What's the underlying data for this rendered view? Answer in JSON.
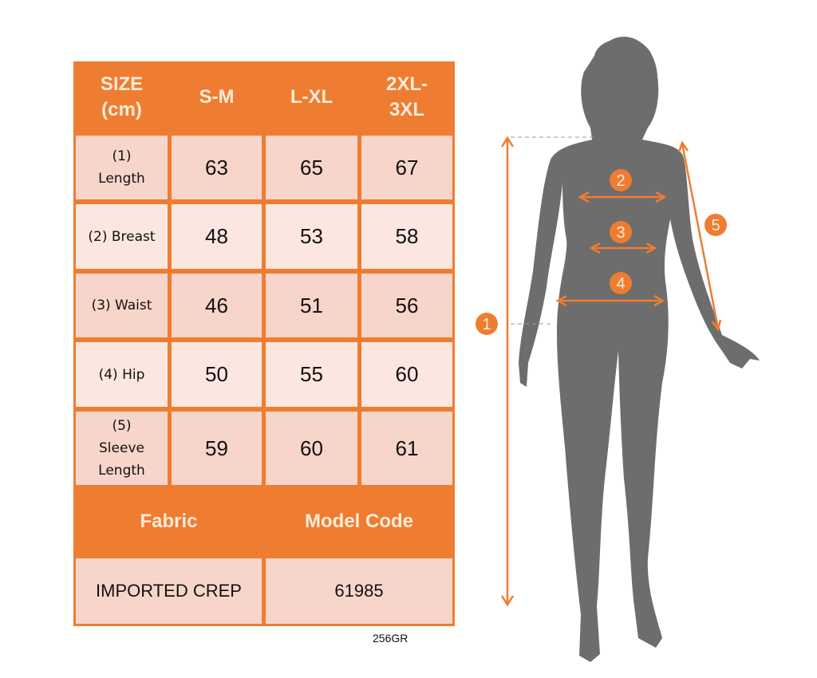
{
  "table": {
    "header": [
      "SIZE (cm)",
      "S-M",
      "L-XL",
      "2XL-3XL"
    ],
    "header_lines": [
      [
        "SIZE",
        "(cm)"
      ],
      [
        "S-M"
      ],
      [
        "L-XL"
      ],
      [
        "2XL-",
        "3XL"
      ]
    ],
    "rows": [
      {
        "label_lines": [
          "(1)",
          "Length"
        ],
        "values": [
          "63",
          "65",
          "67"
        ]
      },
      {
        "label_lines": [
          "(2) Breast"
        ],
        "values": [
          "48",
          "53",
          "58"
        ]
      },
      {
        "label_lines": [
          "(3) Waist"
        ],
        "values": [
          "46",
          "51",
          "56"
        ]
      },
      {
        "label_lines": [
          "(4) Hip"
        ],
        "values": [
          "50",
          "55",
          "60"
        ]
      },
      {
        "label_lines": [
          "(5)",
          "Sleeve",
          "Length"
        ],
        "values": [
          "59",
          "60",
          "61"
        ]
      }
    ],
    "fabric_label": "Fabric",
    "model_code_label": "Model Code",
    "fabric_value": "IMPORTED CREP",
    "model_code_value": "61985"
  },
  "product_code": "256GR",
  "figure": {
    "markers": [
      "1",
      "2",
      "3",
      "4",
      "5"
    ]
  },
  "colors": {
    "accent": "#ee7d31",
    "row_dark": "#f8d5ca",
    "row_light": "#fbe7df",
    "silhouette": "#6d6d6d"
  }
}
